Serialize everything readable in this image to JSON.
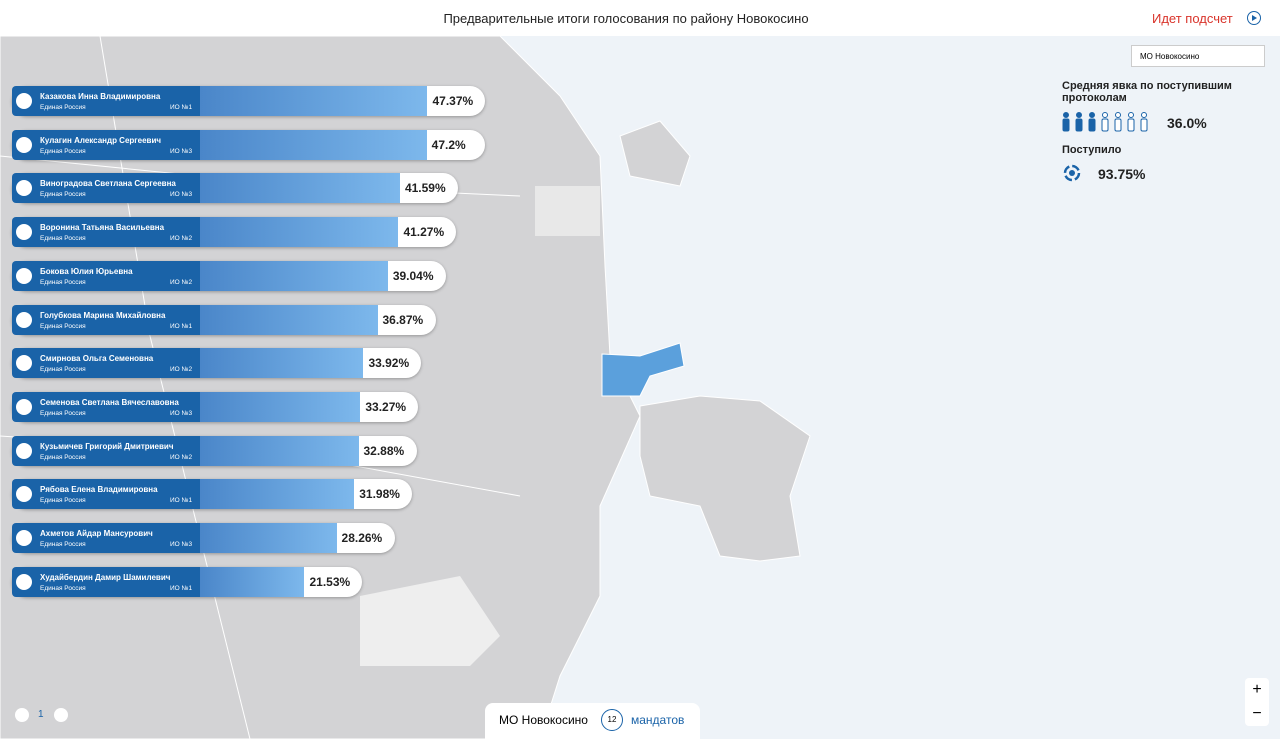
{
  "header": {
    "title": "Предварительные итоги голосования по району Новокосино",
    "status": "Идет подсчет"
  },
  "candidates": [
    {
      "name": "Казакова Инна Владимировна",
      "party": "Единая Россия",
      "district": "ИО №1",
      "percent": 47.37,
      "percent_label": "47.37%"
    },
    {
      "name": "Кулагин Александр Сергеевич",
      "party": "Единая Россия",
      "district": "ИО №3",
      "percent": 47.2,
      "percent_label": "47.2%"
    },
    {
      "name": "Виноградова Светлана Сергеевна",
      "party": "Единая Россия",
      "district": "ИО №3",
      "percent": 41.59,
      "percent_label": "41.59%"
    },
    {
      "name": "Воронина Татьяна Васильевна",
      "party": "Единая Россия",
      "district": "ИО №2",
      "percent": 41.27,
      "percent_label": "41.27%"
    },
    {
      "name": "Бокова Юлия Юрьевна",
      "party": "Единая Россия",
      "district": "ИО №2",
      "percent": 39.04,
      "percent_label": "39.04%"
    },
    {
      "name": "Голубкова Марина Михайловна",
      "party": "Единая Россия",
      "district": "ИО №1",
      "percent": 36.87,
      "percent_label": "36.87%"
    },
    {
      "name": "Смирнова Ольга Семеновна",
      "party": "Единая Россия",
      "district": "ИО №2",
      "percent": 33.92,
      "percent_label": "33.92%"
    },
    {
      "name": "Семенова Светлана Вячеславовна",
      "party": "Единая Россия",
      "district": "ИО №3",
      "percent": 33.27,
      "percent_label": "33.27%"
    },
    {
      "name": "Кузьмичев Григорий Дмитриевич",
      "party": "Единая Россия",
      "district": "ИО №2",
      "percent": 32.88,
      "percent_label": "32.88%"
    },
    {
      "name": "Рябова Елена Владимировна",
      "party": "Единая Россия",
      "district": "ИО №1",
      "percent": 31.98,
      "percent_label": "31.98%"
    },
    {
      "name": "Ахметов Айдар Мансурович",
      "party": "Единая Россия",
      "district": "ИО №3",
      "percent": 28.26,
      "percent_label": "28.26%"
    },
    {
      "name": "Худайбердин Дамир Шамилевич",
      "party": "Единая Россия",
      "district": "ИО №1",
      "percent": 21.53,
      "percent_label": "21.53%"
    }
  ],
  "side_panel": {
    "selector": "МО Новокосино",
    "turnout_title": "Средняя явка по поступившим протоколам",
    "turnout": "36.0%",
    "received_title": "Поступило",
    "received": "93.75%"
  },
  "footer": {
    "district": "МО Новокосино",
    "mandates": "12",
    "mandates_label": "мандатов",
    "page": "1"
  },
  "zoom": {
    "in": "+",
    "out": "−"
  }
}
